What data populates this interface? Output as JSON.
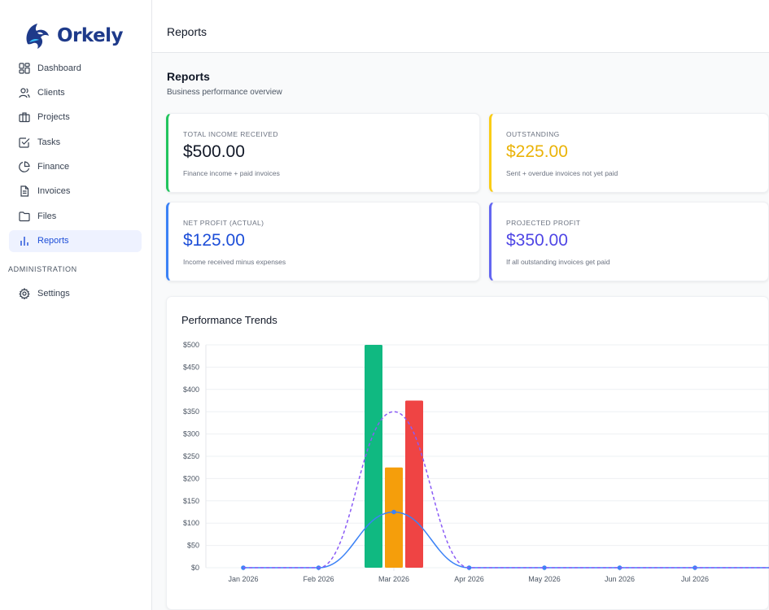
{
  "app": {
    "name": "Orkely"
  },
  "sidebar": {
    "items": [
      {
        "label": "Dashboard",
        "icon": "dashboard-grid-icon"
      },
      {
        "label": "Clients",
        "icon": "users-icon"
      },
      {
        "label": "Projects",
        "icon": "briefcase-icon"
      },
      {
        "label": "Tasks",
        "icon": "checkbox-icon"
      },
      {
        "label": "Finance",
        "icon": "pie-chart-icon"
      },
      {
        "label": "Invoices",
        "icon": "document-icon"
      },
      {
        "label": "Files",
        "icon": "folder-icon"
      },
      {
        "label": "Reports",
        "icon": "bar-chart-icon",
        "active": true
      }
    ],
    "section_label": "ADMINISTRATION",
    "admin_items": [
      {
        "label": "Settings",
        "icon": "gear-icon"
      }
    ]
  },
  "header": {
    "title": "Reports"
  },
  "page": {
    "title": "Reports",
    "subtitle": "Business performance overview"
  },
  "cards": [
    {
      "label": "TOTAL INCOME RECEIVED",
      "value": "$500.00",
      "desc": "Finance income + paid invoices",
      "color": "#111827",
      "accent": "#22c55e"
    },
    {
      "label": "OUTSTANDING",
      "value": "$225.00",
      "desc": "Sent + overdue invoices not yet paid",
      "color": "#eab308",
      "accent": "#facc15"
    },
    {
      "label": "NET PROFIT (ACTUAL)",
      "value": "$125.00",
      "desc": "Income received minus expenses",
      "color": "#1d4ed8",
      "accent": "#3b82f6"
    },
    {
      "label": "PROJECTED PROFIT",
      "value": "$350.00",
      "desc": "If all outstanding invoices get paid",
      "color": "#4f46e5",
      "accent": "#6366f1"
    }
  ],
  "chart_title": "Performance Trends",
  "chart_data": {
    "type": "bar",
    "title": "Performance Trends",
    "categories": [
      "Jan 2026",
      "Feb 2026",
      "Mar 2026",
      "Apr 2026",
      "May 2026",
      "Jun 2026",
      "Jul 2026"
    ],
    "y_tick_labels": [
      "$0",
      "$50",
      "$100",
      "$150",
      "$200",
      "$250",
      "$300",
      "$350",
      "$400",
      "$450",
      "$500"
    ],
    "ylim": [
      0,
      500
    ],
    "grid": true,
    "series": [
      {
        "kind": "bar",
        "color": "#10b981",
        "values": [
          0,
          0,
          500,
          0,
          0,
          0,
          0
        ]
      },
      {
        "kind": "bar",
        "color": "#f59e0b",
        "values": [
          0,
          0,
          225,
          0,
          0,
          0,
          0
        ]
      },
      {
        "kind": "bar",
        "color": "#ef4444",
        "values": [
          0,
          0,
          375,
          0,
          0,
          0,
          0
        ]
      },
      {
        "kind": "line",
        "color": "#3b82f6",
        "style": "solid",
        "values": [
          0,
          0,
          125,
          0,
          0,
          0,
          0
        ]
      },
      {
        "kind": "line",
        "color": "#8b5cf6",
        "style": "dashed",
        "values": [
          0,
          0,
          350,
          0,
          0,
          0,
          0
        ]
      }
    ]
  }
}
